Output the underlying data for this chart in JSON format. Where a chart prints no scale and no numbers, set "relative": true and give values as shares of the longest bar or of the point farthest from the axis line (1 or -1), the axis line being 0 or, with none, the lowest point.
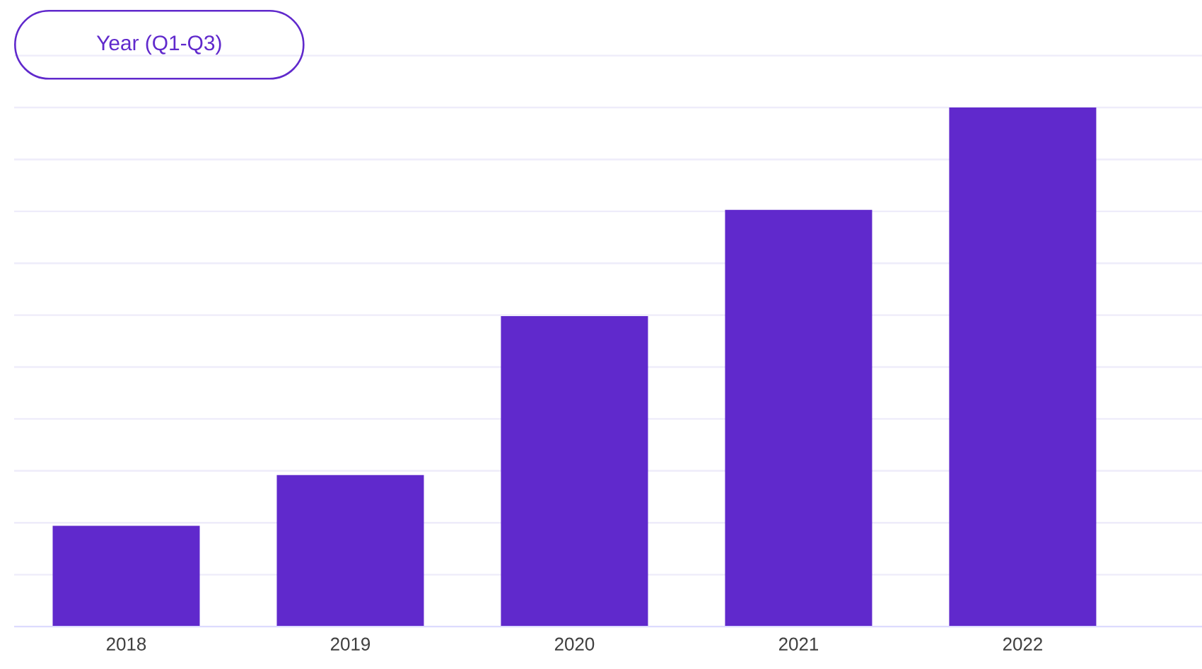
{
  "chart_data": {
    "type": "bar",
    "title": "Year (Q1-Q3)",
    "categories": [
      "2018",
      "2019",
      "2020",
      "2021",
      "2022"
    ],
    "values": [
      0.194,
      0.292,
      0.598,
      0.803,
      1
    ],
    "color": "#6029cc",
    "relative": true,
    "grid": "y"
  }
}
